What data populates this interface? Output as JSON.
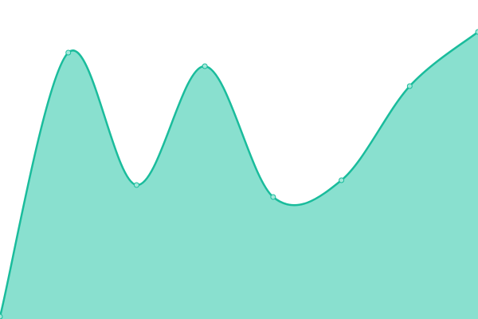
{
  "chart_data": {
    "type": "area",
    "title": "",
    "xlabel": "",
    "ylabel": "",
    "x": [
      0,
      1,
      2,
      3,
      4,
      5,
      6,
      7
    ],
    "values": [
      3,
      334,
      168,
      317,
      153,
      174,
      292,
      360
    ],
    "xlim": [
      0,
      7
    ],
    "ylim": [
      0,
      400
    ],
    "grid": false,
    "axes_visible": false,
    "smooth": true,
    "colors": {
      "line": "#1abc9c",
      "fill": "#89e0cf",
      "marker_fill": "#a3e8da"
    }
  }
}
